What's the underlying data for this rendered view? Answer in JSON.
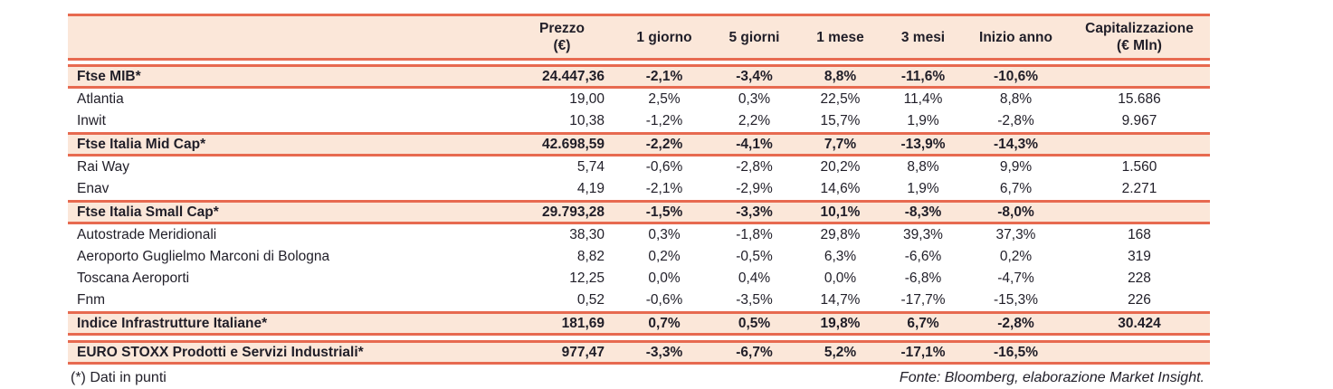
{
  "chart_data": {
    "type": "table",
    "columns": [
      {
        "label": "",
        "sub": ""
      },
      {
        "label": "Prezzo",
        "sub": "(€)"
      },
      {
        "label": "1 giorno",
        "sub": ""
      },
      {
        "label": "5 giorni",
        "sub": ""
      },
      {
        "label": "1 mese",
        "sub": ""
      },
      {
        "label": "3 mesi",
        "sub": ""
      },
      {
        "label": "Inizio anno",
        "sub": ""
      },
      {
        "label": "Capitalizzazione",
        "sub": "(€ Mln)"
      }
    ],
    "rows": [
      {
        "type": "gap"
      },
      {
        "type": "index",
        "cells": [
          "Ftse MIB*",
          "24.447,36",
          "-2,1%",
          "-3,4%",
          "8,8%",
          "-11,6%",
          "-10,6%",
          ""
        ]
      },
      {
        "type": "stock",
        "cells": [
          "Atlantia",
          "19,00",
          "2,5%",
          "0,3%",
          "22,5%",
          "11,4%",
          "8,8%",
          "15.686"
        ]
      },
      {
        "type": "stock",
        "cells": [
          "Inwit",
          "10,38",
          "-1,2%",
          "2,2%",
          "15,7%",
          "1,9%",
          "-2,8%",
          "9.967"
        ]
      },
      {
        "type": "index",
        "cells": [
          "Ftse Italia Mid Cap*",
          "42.698,59",
          "-2,2%",
          "-4,1%",
          "7,7%",
          "-13,9%",
          "-14,3%",
          ""
        ]
      },
      {
        "type": "stock",
        "cells": [
          "Rai Way",
          "5,74",
          "-0,6%",
          "-2,8%",
          "20,2%",
          "8,8%",
          "9,9%",
          "1.560"
        ]
      },
      {
        "type": "stock",
        "cells": [
          "Enav",
          "4,19",
          "-2,1%",
          "-2,9%",
          "14,6%",
          "1,9%",
          "6,7%",
          "2.271"
        ]
      },
      {
        "type": "index",
        "cells": [
          "Ftse Italia Small Cap*",
          "29.793,28",
          "-1,5%",
          "-3,3%",
          "10,1%",
          "-8,3%",
          "-8,0%",
          ""
        ]
      },
      {
        "type": "stock",
        "cells": [
          "Autostrade Meridionali",
          "38,30",
          "0,3%",
          "-1,8%",
          "29,8%",
          "39,3%",
          "37,3%",
          "168"
        ]
      },
      {
        "type": "stock",
        "cells": [
          "Aeroporto Guglielmo Marconi di Bologna",
          "8,82",
          "0,2%",
          "-0,5%",
          "6,3%",
          "-6,6%",
          "0,2%",
          "319"
        ]
      },
      {
        "type": "stock",
        "cells": [
          "Toscana Aeroporti",
          "12,25",
          "0,0%",
          "0,4%",
          "0,0%",
          "-6,8%",
          "-4,7%",
          "228"
        ]
      },
      {
        "type": "stock",
        "cells": [
          "Fnm",
          "0,52",
          "-0,6%",
          "-3,5%",
          "14,7%",
          "-17,7%",
          "-15,3%",
          "226"
        ]
      },
      {
        "type": "index",
        "cells": [
          "Indice Infrastrutture Italiane*",
          "181,69",
          "0,7%",
          "0,5%",
          "19,8%",
          "6,7%",
          "-2,8%",
          "30.424"
        ]
      },
      {
        "type": "gap5"
      },
      {
        "type": "index",
        "cells": [
          "EURO STOXX Prodotti e Servizi Industriali*",
          "977,47",
          "-3,3%",
          "-6,7%",
          "5,2%",
          "-17,1%",
          "-16,5%",
          ""
        ]
      }
    ],
    "footer": {
      "note": "(*) Dati in punti",
      "source": "Fonte: Bloomberg, elaborazione Market Insight."
    },
    "colors": {
      "accent": "#e76a50",
      "band_background": "#fbe7d9",
      "text": "#201e28"
    },
    "layout": {
      "grid": "off",
      "header_style": "peach band, coral rules"
    }
  }
}
